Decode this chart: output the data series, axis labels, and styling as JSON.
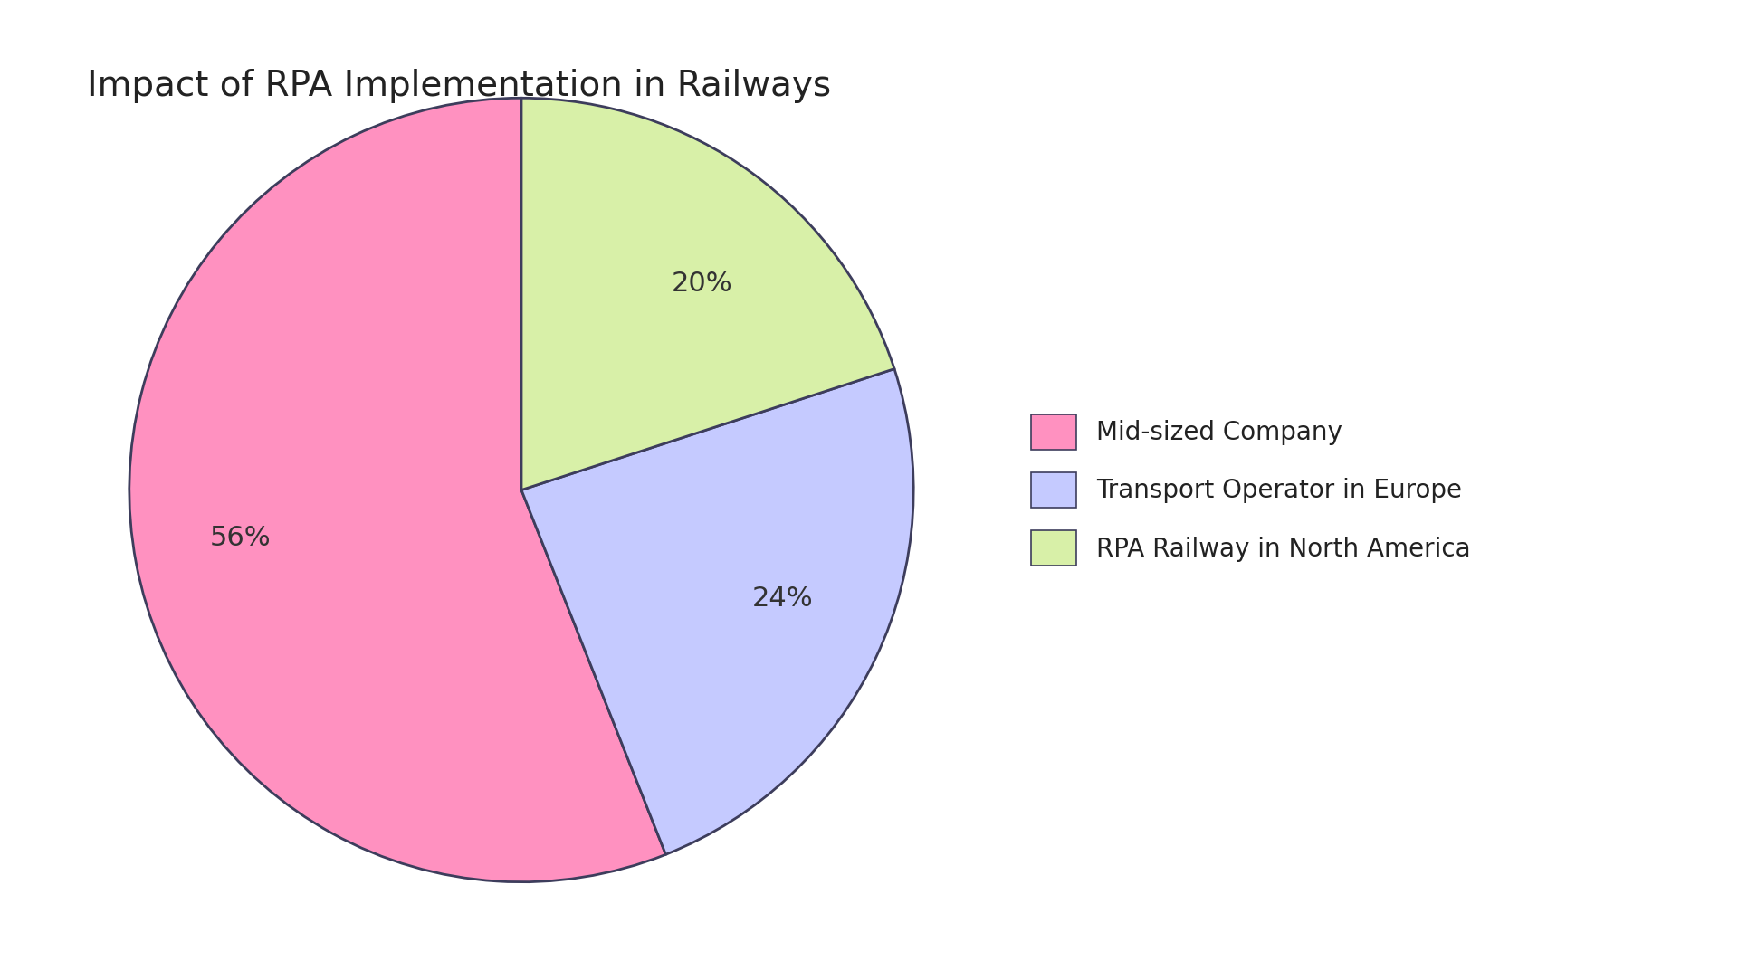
{
  "title": "Impact of RPA Implementation in Railways",
  "slices": [
    {
      "label": "Mid-sized Company",
      "value": 56,
      "color": "#FF91C0"
    },
    {
      "label": "Transport Operator in Europe",
      "value": 24,
      "color": "#C5CAFF"
    },
    {
      "label": "RPA Railway in North America",
      "value": 20,
      "color": "#D8F0A8"
    }
  ],
  "background_color": "#FFFFFF",
  "text_color": "#333333",
  "edge_color": "#3d3d5c",
  "edge_width": 2.0,
  "title_fontsize": 28,
  "label_fontsize": 22,
  "legend_fontsize": 20,
  "startangle": 90
}
